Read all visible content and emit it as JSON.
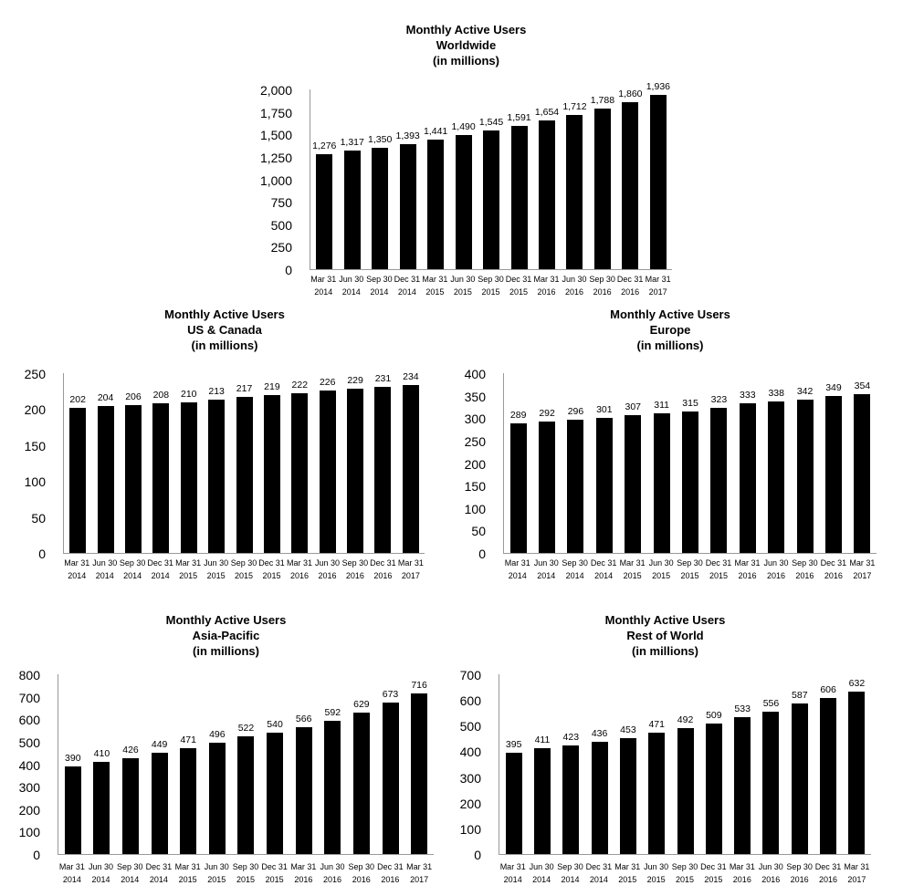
{
  "chart_data": [
    {
      "name": "worldwide",
      "type": "bar",
      "title_lines": [
        "Monthly Active Users",
        "Worldwide",
        "(in millions)"
      ],
      "xlabel": "",
      "ylabel": "",
      "ylim": [
        0,
        2000
      ],
      "ytick_step": 250,
      "y_tick_labels": [
        "0",
        "250",
        "500",
        "750",
        "1,000",
        "1,250",
        "1,500",
        "1,750",
        "2,000"
      ],
      "categories": [
        [
          "Mar 31",
          "2014"
        ],
        [
          "Jun 30",
          "2014"
        ],
        [
          "Sep 30",
          "2014"
        ],
        [
          "Dec 31",
          "2014"
        ],
        [
          "Mar 31",
          "2015"
        ],
        [
          "Jun 30",
          "2015"
        ],
        [
          "Sep 30",
          "2015"
        ],
        [
          "Dec 31",
          "2015"
        ],
        [
          "Mar 31",
          "2016"
        ],
        [
          "Jun 30",
          "2016"
        ],
        [
          "Sep 30",
          "2016"
        ],
        [
          "Dec 31",
          "2016"
        ],
        [
          "Mar 31",
          "2017"
        ]
      ],
      "values": [
        1276,
        1317,
        1350,
        1393,
        1441,
        1490,
        1545,
        1591,
        1654,
        1712,
        1788,
        1860,
        1936
      ],
      "value_labels": [
        "1,276",
        "1,317",
        "1,350",
        "1,393",
        "1,441",
        "1,490",
        "1,545",
        "1,591",
        "1,654",
        "1,712",
        "1,788",
        "1,860",
        "1,936"
      ],
      "bar_color": "#000000",
      "grid": false,
      "legend": false
    },
    {
      "name": "us-canada",
      "type": "bar",
      "title_lines": [
        "Monthly Active Users",
        "US & Canada",
        "(in millions)"
      ],
      "xlabel": "",
      "ylabel": "",
      "ylim": [
        0,
        250
      ],
      "ytick_step": 50,
      "y_tick_labels": [
        "0",
        "50",
        "100",
        "150",
        "200",
        "250"
      ],
      "categories": [
        [
          "Mar 31",
          "2014"
        ],
        [
          "Jun 30",
          "2014"
        ],
        [
          "Sep 30",
          "2014"
        ],
        [
          "Dec 31",
          "2014"
        ],
        [
          "Mar 31",
          "2015"
        ],
        [
          "Jun 30",
          "2015"
        ],
        [
          "Sep 30",
          "2015"
        ],
        [
          "Dec 31",
          "2015"
        ],
        [
          "Mar 31",
          "2016"
        ],
        [
          "Jun 30",
          "2016"
        ],
        [
          "Sep 30",
          "2016"
        ],
        [
          "Dec 31",
          "2016"
        ],
        [
          "Mar 31",
          "2017"
        ]
      ],
      "values": [
        202,
        204,
        206,
        208,
        210,
        213,
        217,
        219,
        222,
        226,
        229,
        231,
        234
      ],
      "value_labels": [
        "202",
        "204",
        "206",
        "208",
        "210",
        "213",
        "217",
        "219",
        "222",
        "226",
        "229",
        "231",
        "234"
      ],
      "bar_color": "#000000",
      "grid": false,
      "legend": false
    },
    {
      "name": "europe",
      "type": "bar",
      "title_lines": [
        "Monthly Active Users",
        "Europe",
        "(in millions)"
      ],
      "xlabel": "",
      "ylabel": "",
      "ylim": [
        0,
        400
      ],
      "ytick_step": 50,
      "y_tick_labels": [
        "0",
        "50",
        "100",
        "150",
        "200",
        "250",
        "300",
        "350",
        "400"
      ],
      "categories": [
        [
          "Mar 31",
          "2014"
        ],
        [
          "Jun 30",
          "2014"
        ],
        [
          "Sep 30",
          "2014"
        ],
        [
          "Dec 31",
          "2014"
        ],
        [
          "Mar 31",
          "2015"
        ],
        [
          "Jun 30",
          "2015"
        ],
        [
          "Sep 30",
          "2015"
        ],
        [
          "Dec 31",
          "2015"
        ],
        [
          "Mar 31",
          "2016"
        ],
        [
          "Jun 30",
          "2016"
        ],
        [
          "Sep 30",
          "2016"
        ],
        [
          "Dec 31",
          "2016"
        ],
        [
          "Mar 31",
          "2017"
        ]
      ],
      "values": [
        289,
        292,
        296,
        301,
        307,
        311,
        315,
        323,
        333,
        338,
        342,
        349,
        354
      ],
      "value_labels": [
        "289",
        "292",
        "296",
        "301",
        "307",
        "311",
        "315",
        "323",
        "333",
        "338",
        "342",
        "349",
        "354"
      ],
      "bar_color": "#000000",
      "grid": false,
      "legend": false
    },
    {
      "name": "asia-pacific",
      "type": "bar",
      "title_lines": [
        "Monthly Active Users",
        "Asia-Pacific",
        "(in millions)"
      ],
      "xlabel": "",
      "ylabel": "",
      "ylim": [
        0,
        800
      ],
      "ytick_step": 100,
      "y_tick_labels": [
        "0",
        "100",
        "200",
        "300",
        "400",
        "500",
        "600",
        "700",
        "800"
      ],
      "categories": [
        [
          "Mar 31",
          "2014"
        ],
        [
          "Jun 30",
          "2014"
        ],
        [
          "Sep 30",
          "2014"
        ],
        [
          "Dec 31",
          "2014"
        ],
        [
          "Mar 31",
          "2015"
        ],
        [
          "Jun 30",
          "2015"
        ],
        [
          "Sep 30",
          "2015"
        ],
        [
          "Dec 31",
          "2015"
        ],
        [
          "Mar 31",
          "2016"
        ],
        [
          "Jun 30",
          "2016"
        ],
        [
          "Sep 30",
          "2016"
        ],
        [
          "Dec 31",
          "2016"
        ],
        [
          "Mar 31",
          "2017"
        ]
      ],
      "values": [
        390,
        410,
        426,
        449,
        471,
        496,
        522,
        540,
        566,
        592,
        629,
        673,
        716
      ],
      "value_labels": [
        "390",
        "410",
        "426",
        "449",
        "471",
        "496",
        "522",
        "540",
        "566",
        "592",
        "629",
        "673",
        "716"
      ],
      "bar_color": "#000000",
      "grid": false,
      "legend": false
    },
    {
      "name": "rest-of-world",
      "type": "bar",
      "title_lines": [
        "Monthly Active Users",
        "Rest of World",
        "(in millions)"
      ],
      "xlabel": "",
      "ylabel": "",
      "ylim": [
        0,
        700
      ],
      "ytick_step": 100,
      "y_tick_labels": [
        "0",
        "100",
        "200",
        "300",
        "400",
        "500",
        "600",
        "700"
      ],
      "categories": [
        [
          "Mar 31",
          "2014"
        ],
        [
          "Jun 30",
          "2014"
        ],
        [
          "Sep 30",
          "2014"
        ],
        [
          "Dec 31",
          "2014"
        ],
        [
          "Mar 31",
          "2015"
        ],
        [
          "Jun 30",
          "2015"
        ],
        [
          "Sep 30",
          "2015"
        ],
        [
          "Dec 31",
          "2015"
        ],
        [
          "Mar 31",
          "2016"
        ],
        [
          "Jun 30",
          "2016"
        ],
        [
          "Sep 30",
          "2016"
        ],
        [
          "Dec 31",
          "2016"
        ],
        [
          "Mar 31",
          "2017"
        ]
      ],
      "values": [
        395,
        411,
        423,
        436,
        453,
        471,
        492,
        509,
        533,
        556,
        587,
        606,
        632
      ],
      "value_labels": [
        "395",
        "411",
        "423",
        "436",
        "453",
        "471",
        "492",
        "509",
        "533",
        "556",
        "587",
        "606",
        "632"
      ],
      "bar_color": "#000000",
      "grid": false,
      "legend": false
    }
  ]
}
